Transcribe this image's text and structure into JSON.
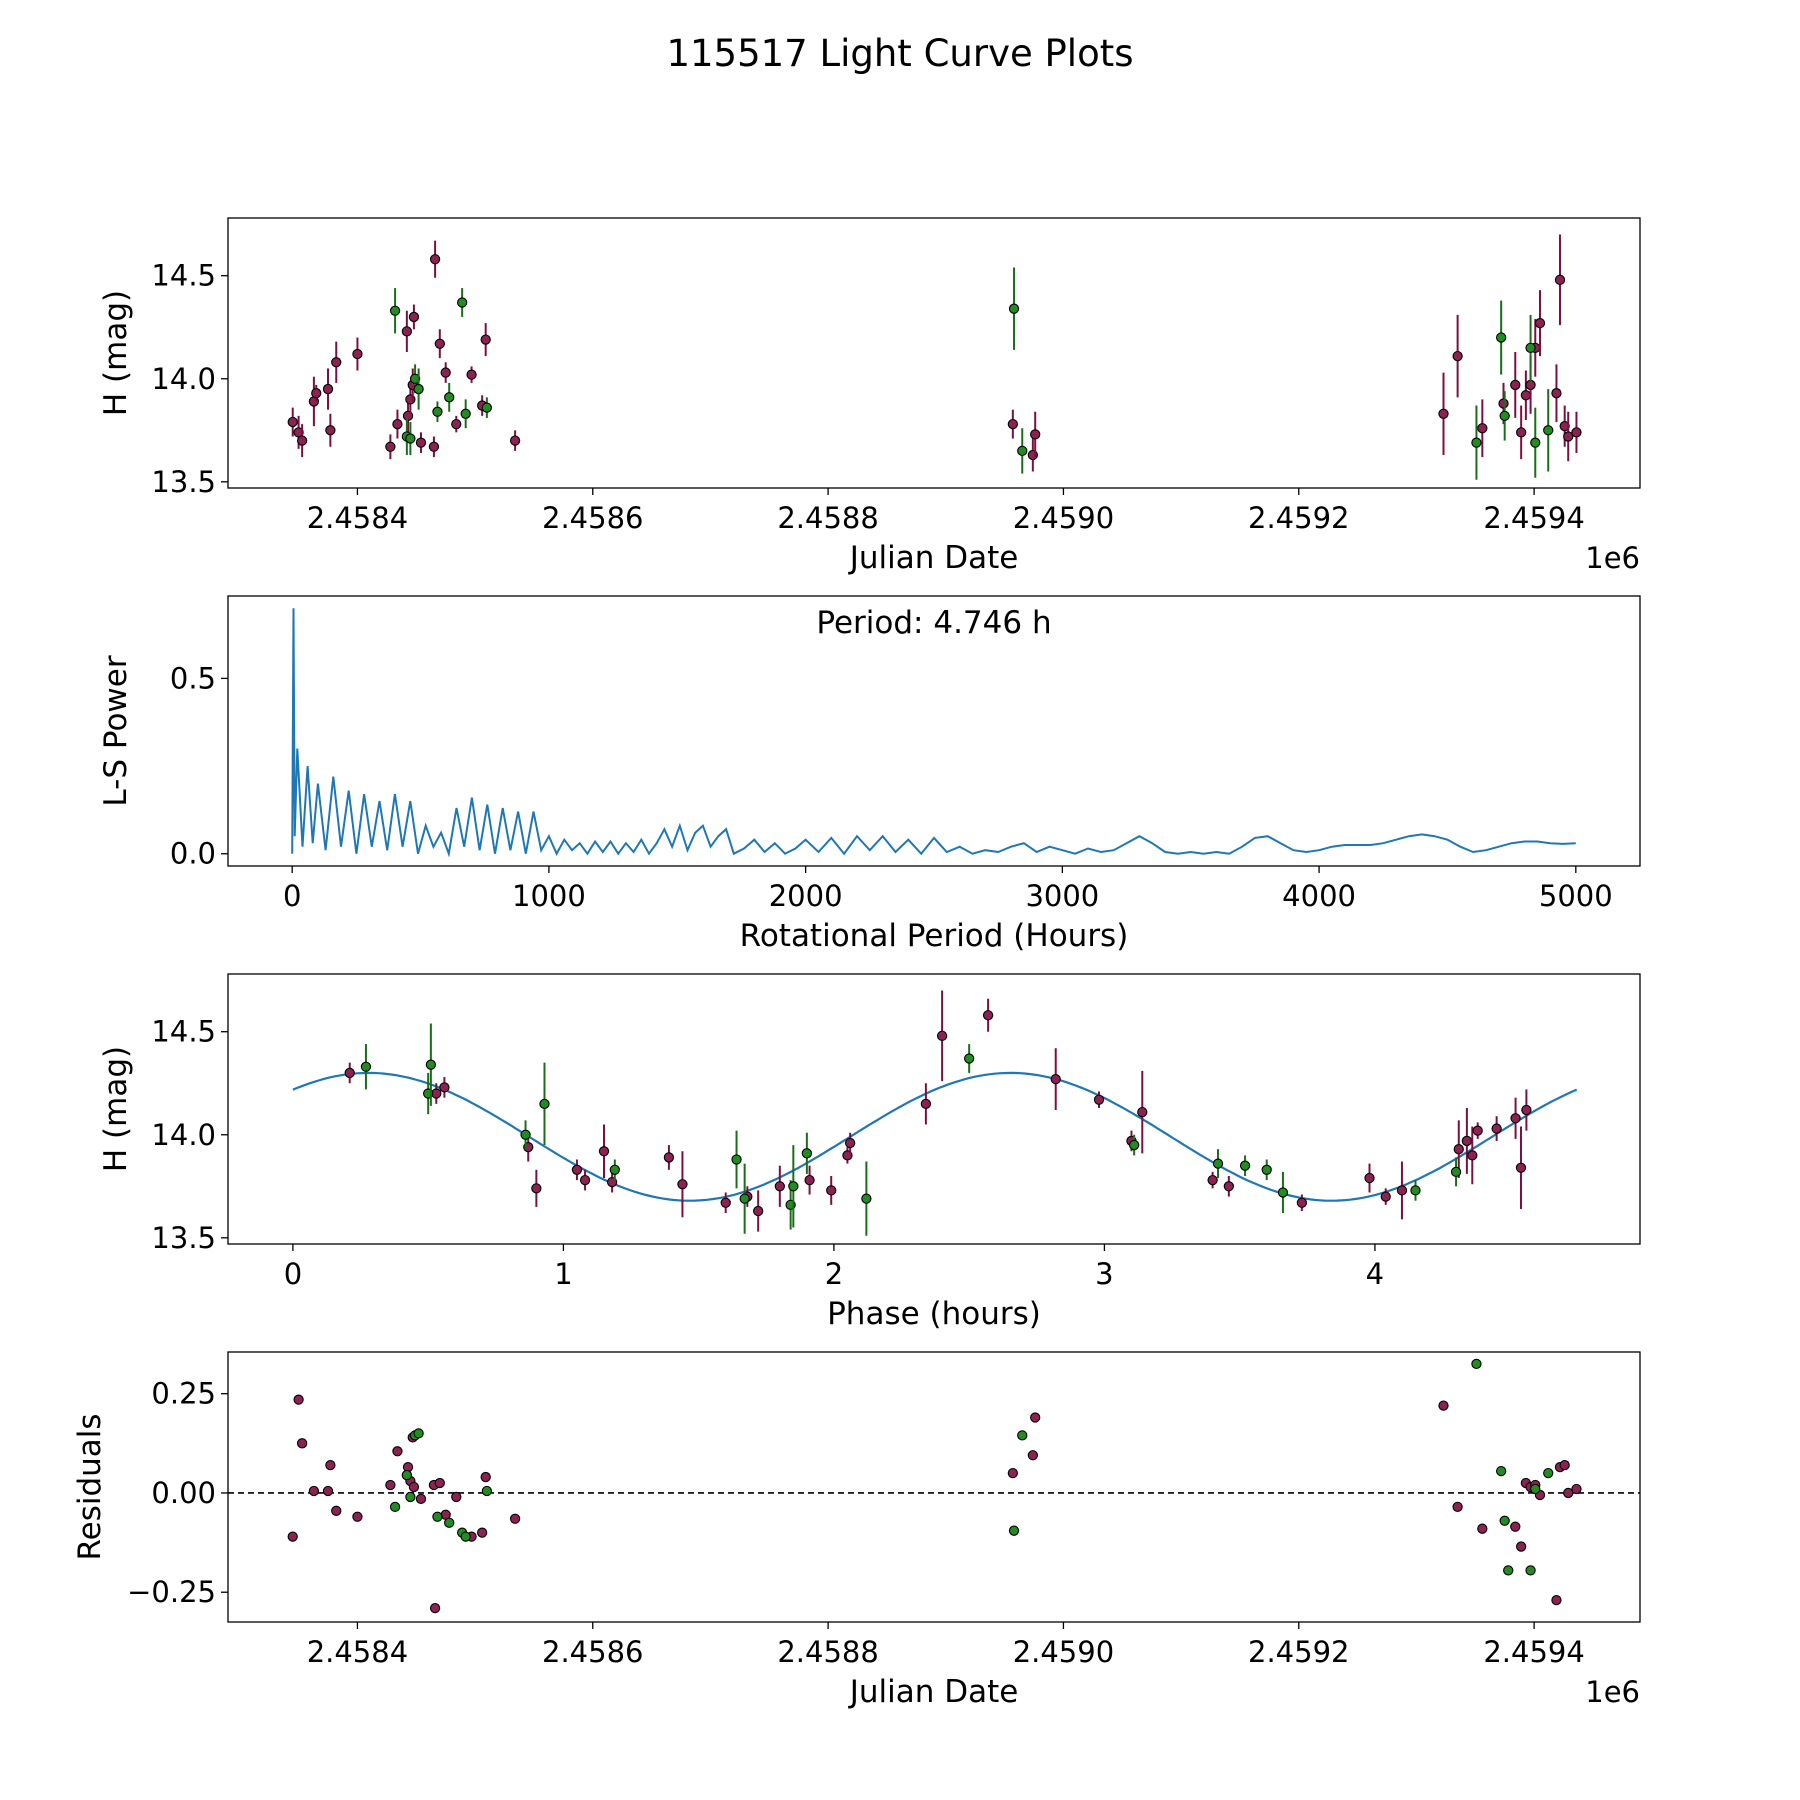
{
  "chart_data": [
    {
      "type": "scatter",
      "title": "115517 Light Curve Plots",
      "panel": "light-curve",
      "xlabel": "Julian Date",
      "ylabel": "H (mag)",
      "x_offset_label": "1e6",
      "xlim": [
        2.45829,
        2.45949
      ],
      "ylim": [
        13.47,
        14.78
      ],
      "xticks": [
        2.4584,
        2.4586,
        2.4588,
        2.459,
        2.4592,
        2.4594
      ],
      "xtick_labels": [
        "2.4584",
        "2.4586",
        "2.4588",
        "2.4590",
        "2.4592",
        "2.4594"
      ],
      "yticks": [
        13.5,
        14.0,
        14.5
      ],
      "ytick_labels": [
        "13.5",
        "14.0",
        "14.5"
      ],
      "marker_colors": {
        "o": "#8b2252",
        "g": "#228b22",
        "err_o": "#7a1040",
        "err_g": "#1a6e1a",
        "edge": "#000000"
      },
      "series": [
        {
          "name": "filter-o",
          "color": "#8b2252",
          "x": [
            2.458345,
            2.45835,
            2.458353,
            2.458363,
            2.458375,
            2.458377,
            2.458382,
            2.4584,
            2.458428,
            2.458434,
            2.458442,
            2.458443,
            2.458445,
            2.458447,
            2.458448,
            2.458454,
            2.458465,
            2.458466,
            2.45847,
            2.458475,
            2.458484,
            2.458497,
            2.458506,
            2.458509,
            2.458534,
            2.458365
          ],
          "y": [
            13.79,
            13.74,
            13.7,
            13.89,
            13.95,
            13.75,
            14.08,
            14.12,
            13.67,
            13.78,
            14.23,
            13.82,
            13.9,
            13.97,
            14.3,
            13.69,
            13.67,
            14.58,
            14.17,
            14.03,
            13.78,
            14.02,
            13.87,
            14.19,
            13.7,
            13.93
          ],
          "err": [
            0.07,
            0.08,
            0.08,
            0.12,
            0.1,
            0.08,
            0.1,
            0.08,
            0.06,
            0.07,
            0.1,
            0.08,
            0.07,
            0.08,
            0.06,
            0.05,
            0.05,
            0.09,
            0.07,
            0.05,
            0.04,
            0.04,
            0.05,
            0.08,
            0.05,
            0.04
          ]
        },
        {
          "name": "filter-o-late",
          "color": "#8b2252",
          "x": [
            2.458957,
            2.458974,
            2.458976,
            2.459323,
            2.459335,
            2.459356,
            2.459374,
            2.459384,
            2.459389,
            2.459393,
            2.459397,
            2.459401,
            2.459405,
            2.459419,
            2.459422,
            2.459426,
            2.459429,
            2.459436
          ],
          "y": [
            13.78,
            13.63,
            13.73,
            13.83,
            14.11,
            13.76,
            13.88,
            13.97,
            13.74,
            13.92,
            13.97,
            14.15,
            14.27,
            13.93,
            14.48,
            13.77,
            13.72,
            13.74
          ],
          "err": [
            0.07,
            0.08,
            0.11,
            0.2,
            0.2,
            0.14,
            0.1,
            0.16,
            0.13,
            0.12,
            0.14,
            0.14,
            0.16,
            0.14,
            0.22,
            0.1,
            0.12,
            0.1
          ]
        },
        {
          "name": "filter-g",
          "color": "#228b22",
          "x": [
            2.458432,
            2.458442,
            2.458445,
            2.458449,
            2.458452,
            2.458468,
            2.458478,
            2.458489,
            2.458492,
            2.45851,
            2.458958,
            2.458965,
            2.459351,
            2.459372,
            2.459375,
            2.459397,
            2.459401,
            2.459412
          ],
          "y": [
            14.33,
            13.72,
            13.71,
            14.0,
            13.95,
            13.84,
            13.91,
            14.37,
            13.83,
            13.86,
            14.34,
            13.65,
            13.69,
            14.2,
            13.82,
            14.15,
            13.69,
            13.75
          ],
          "err": [
            0.11,
            0.09,
            0.08,
            0.07,
            0.1,
            0.05,
            0.07,
            0.07,
            0.07,
            0.05,
            0.2,
            0.11,
            0.18,
            0.18,
            0.12,
            0.16,
            0.17,
            0.2
          ]
        }
      ]
    },
    {
      "type": "line",
      "panel": "periodogram",
      "xlabel": "Rotational Period (Hours)",
      "ylabel": "L-S Power",
      "annotation": "Period: 4.746 h",
      "xlim": [
        -250,
        5250
      ],
      "ylim": [
        -0.035,
        0.735
      ],
      "xticks": [
        0,
        1000,
        2000,
        3000,
        4000,
        5000
      ],
      "xtick_labels": [
        "0",
        "1000",
        "2000",
        "3000",
        "4000",
        "5000"
      ],
      "yticks": [
        0.0,
        0.5
      ],
      "ytick_labels": [
        "0.0",
        "0.5"
      ],
      "line_color": "#1f77b4",
      "x": [
        0,
        5,
        10,
        20,
        40,
        60,
        80,
        100,
        130,
        160,
        190,
        220,
        250,
        280,
        310,
        340,
        370,
        400,
        430,
        460,
        490,
        520,
        550,
        580,
        610,
        640,
        670,
        700,
        730,
        760,
        790,
        820,
        850,
        880,
        910,
        940,
        970,
        1000,
        1030,
        1060,
        1090,
        1120,
        1150,
        1180,
        1210,
        1240,
        1270,
        1300,
        1330,
        1360,
        1390,
        1420,
        1450,
        1480,
        1510,
        1540,
        1570,
        1600,
        1630,
        1660,
        1690,
        1720,
        1760,
        1800,
        1840,
        1880,
        1920,
        1960,
        2000,
        2050,
        2100,
        2150,
        2200,
        2250,
        2300,
        2350,
        2400,
        2450,
        2500,
        2550,
        2600,
        2650,
        2700,
        2750,
        2800,
        2850,
        2900,
        2950,
        3000,
        3050,
        3100,
        3150,
        3200,
        3250,
        3300,
        3350,
        3400,
        3450,
        3500,
        3550,
        3600,
        3650,
        3700,
        3750,
        3800,
        3850,
        3900,
        3950,
        4000,
        4050,
        4100,
        4150,
        4200,
        4250,
        4300,
        4350,
        4400,
        4450,
        4500,
        4550,
        4600,
        4650,
        4700,
        4750,
        4800,
        4850,
        4900,
        4950,
        5000
      ],
      "y": [
        0.0,
        0.7,
        0.05,
        0.3,
        0.02,
        0.25,
        0.03,
        0.2,
        0.01,
        0.22,
        0.02,
        0.18,
        0.0,
        0.17,
        0.02,
        0.15,
        0.01,
        0.17,
        0.02,
        0.15,
        0.0,
        0.08,
        0.02,
        0.06,
        0.0,
        0.13,
        0.02,
        0.16,
        0.01,
        0.14,
        0.0,
        0.13,
        0.01,
        0.12,
        0.0,
        0.12,
        0.01,
        0.05,
        0.0,
        0.04,
        0.01,
        0.03,
        0.0,
        0.035,
        0.005,
        0.035,
        0.0,
        0.03,
        0.005,
        0.04,
        0.0,
        0.03,
        0.07,
        0.02,
        0.08,
        0.01,
        0.06,
        0.08,
        0.02,
        0.05,
        0.07,
        0.0,
        0.015,
        0.04,
        0.005,
        0.03,
        0.0,
        0.015,
        0.04,
        0.005,
        0.045,
        0.0,
        0.05,
        0.01,
        0.05,
        0.005,
        0.04,
        0.0,
        0.045,
        0.005,
        0.02,
        0.0,
        0.01,
        0.005,
        0.02,
        0.03,
        0.005,
        0.02,
        0.01,
        0.0,
        0.015,
        0.005,
        0.01,
        0.03,
        0.05,
        0.03,
        0.005,
        0.0,
        0.005,
        0.0,
        0.005,
        0.0,
        0.02,
        0.045,
        0.05,
        0.03,
        0.01,
        0.005,
        0.01,
        0.02,
        0.025,
        0.025,
        0.025,
        0.03,
        0.04,
        0.05,
        0.055,
        0.05,
        0.04,
        0.02,
        0.005,
        0.01,
        0.02,
        0.03,
        0.035,
        0.035,
        0.03,
        0.028,
        0.03
      ]
    },
    {
      "type": "scatter",
      "panel": "phase-folded",
      "xlabel": "Phase (hours)",
      "ylabel": "H (mag)",
      "xlim": [
        -0.24,
        4.98
      ],
      "ylim": [
        13.47,
        14.78
      ],
      "xticks": [
        0,
        1,
        2,
        3,
        4
      ],
      "xtick_labels": [
        "0",
        "1",
        "2",
        "3",
        "4"
      ],
      "yticks": [
        13.5,
        14.0,
        14.5
      ],
      "ytick_labels": [
        "13.5",
        "14.0",
        "14.5"
      ],
      "model": {
        "period_hours": 4.746,
        "mean": 13.99,
        "amplitude": 0.31,
        "peak_phase": 0.28,
        "harmonics": 2,
        "color": "#1f77b4"
      },
      "series": [
        {
          "name": "filter-o",
          "color": "#8b2252",
          "x": [
            0.21,
            0.53,
            0.56,
            0.87,
            0.9,
            1.05,
            1.08,
            1.15,
            1.18,
            1.39,
            1.44,
            1.6,
            1.68,
            1.72,
            1.8,
            1.91,
            1.99,
            2.05,
            2.06,
            2.34,
            2.4,
            2.57,
            2.82,
            2.98,
            3.1,
            3.14,
            3.4,
            3.46,
            3.73,
            3.98,
            4.04,
            4.1,
            4.31,
            4.34,
            4.36,
            4.38,
            4.45,
            4.52,
            4.54,
            4.56
          ],
          "y": [
            14.3,
            14.2,
            14.23,
            13.94,
            13.74,
            13.83,
            13.78,
            13.92,
            13.77,
            13.89,
            13.76,
            13.67,
            13.7,
            13.63,
            13.75,
            13.78,
            13.73,
            13.9,
            13.96,
            14.15,
            14.48,
            14.58,
            14.27,
            14.17,
            13.97,
            14.11,
            13.78,
            13.75,
            13.67,
            13.79,
            13.7,
            13.73,
            13.93,
            13.97,
            13.9,
            14.02,
            14.03,
            14.08,
            13.84,
            14.12
          ],
          "err": [
            0.05,
            0.05,
            0.05,
            0.07,
            0.09,
            0.05,
            0.05,
            0.13,
            0.05,
            0.06,
            0.16,
            0.05,
            0.05,
            0.1,
            0.1,
            0.07,
            0.07,
            0.04,
            0.05,
            0.1,
            0.22,
            0.08,
            0.15,
            0.04,
            0.05,
            0.2,
            0.04,
            0.05,
            0.04,
            0.07,
            0.04,
            0.14,
            0.14,
            0.16,
            0.14,
            0.04,
            0.06,
            0.1,
            0.2,
            0.1
          ]
        },
        {
          "name": "filter-g",
          "color": "#228b22",
          "x": [
            0.27,
            0.5,
            0.51,
            0.86,
            0.93,
            1.19,
            1.64,
            1.67,
            1.84,
            1.85,
            1.9,
            2.12,
            2.5,
            3.11,
            3.42,
            3.52,
            3.6,
            3.66,
            4.15,
            4.3
          ],
          "y": [
            14.33,
            14.2,
            14.34,
            14.0,
            14.15,
            13.83,
            13.88,
            13.69,
            13.66,
            13.75,
            13.91,
            13.69,
            14.37,
            13.95,
            13.86,
            13.85,
            13.83,
            13.72,
            13.73,
            13.82
          ],
          "err": [
            0.11,
            0.1,
            0.2,
            0.07,
            0.2,
            0.05,
            0.14,
            0.17,
            0.12,
            0.2,
            0.1,
            0.18,
            0.07,
            0.05,
            0.07,
            0.05,
            0.05,
            0.1,
            0.05,
            0.07
          ]
        }
      ]
    },
    {
      "type": "scatter",
      "panel": "residuals",
      "xlabel": "Julian Date",
      "ylabel": "Residuals",
      "x_offset_label": "1e6",
      "xlim": [
        2.45829,
        2.45949
      ],
      "ylim": [
        -0.325,
        0.355
      ],
      "xticks": [
        2.4584,
        2.4586,
        2.4588,
        2.459,
        2.4592,
        2.4594
      ],
      "xtick_labels": [
        "2.4584",
        "2.4586",
        "2.4588",
        "2.4590",
        "2.4592",
        "2.4594"
      ],
      "yticks": [
        -0.25,
        0.0,
        0.25
      ],
      "ytick_labels": [
        "−0.25",
        "0.00",
        "0.25"
      ],
      "zero_line": 0.0,
      "series": [
        {
          "name": "filter-o",
          "color": "#8b2252",
          "x": [
            2.458345,
            2.45835,
            2.458353,
            2.458363,
            2.458375,
            2.458377,
            2.458382,
            2.4584,
            2.458428,
            2.458434,
            2.458442,
            2.458443,
            2.458445,
            2.458447,
            2.458448,
            2.458454,
            2.458465,
            2.458466,
            2.45847,
            2.458475,
            2.458484,
            2.458497,
            2.458506,
            2.458509,
            2.458534,
            2.458957,
            2.458974,
            2.458976,
            2.459323,
            2.459335,
            2.459356,
            2.459384,
            2.459389,
            2.459393,
            2.459397,
            2.459401,
            2.459405,
            2.459419,
            2.459422,
            2.459426,
            2.459429,
            2.459436
          ],
          "y": [
            -0.11,
            0.235,
            0.125,
            0.005,
            0.005,
            0.07,
            -0.045,
            -0.06,
            0.02,
            0.105,
            0.045,
            0.065,
            0.03,
            0.14,
            0.015,
            -0.015,
            0.02,
            -0.29,
            0.025,
            -0.055,
            -0.01,
            -0.11,
            -0.1,
            0.04,
            -0.065,
            0.05,
            0.095,
            0.19,
            0.22,
            -0.035,
            -0.09,
            -0.085,
            -0.135,
            0.025,
            0.015,
            0.02,
            -0.005,
            -0.27,
            0.065,
            0.07,
            0.0,
            0.01
          ],
          "err": []
        },
        {
          "name": "filter-g",
          "color": "#228b22",
          "x": [
            2.458432,
            2.458442,
            2.458445,
            2.458449,
            2.458452,
            2.458468,
            2.458478,
            2.458489,
            2.458492,
            2.45851,
            2.458958,
            2.458965,
            2.459351,
            2.459372,
            2.459375,
            2.459378,
            2.459397,
            2.459401,
            2.459412
          ],
          "y": [
            -0.035,
            0.045,
            -0.01,
            0.145,
            0.15,
            -0.06,
            -0.075,
            -0.1,
            -0.11,
            0.005,
            -0.095,
            0.145,
            0.325,
            0.055,
            -0.07,
            -0.195,
            -0.195,
            0.01,
            0.05
          ],
          "err": []
        }
      ]
    }
  ]
}
